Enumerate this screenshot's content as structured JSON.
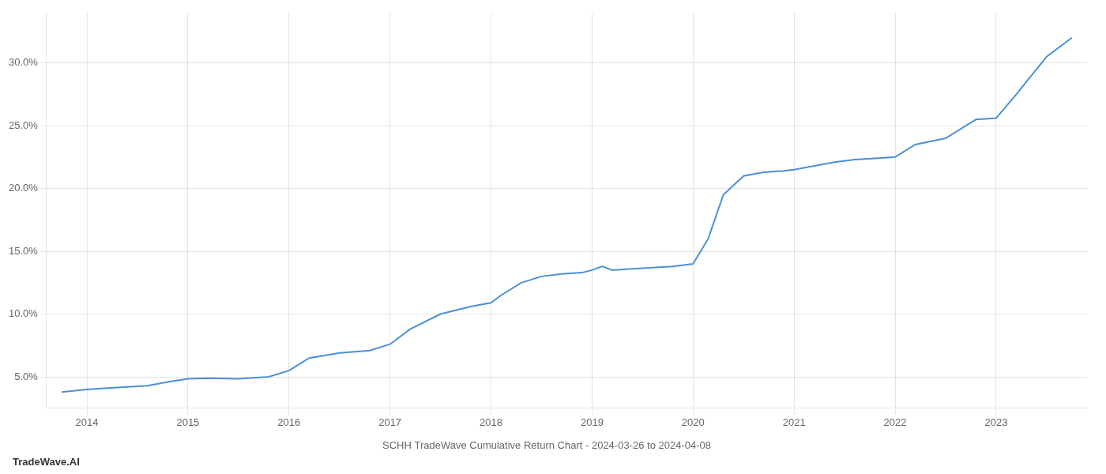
{
  "chart_data": {
    "type": "line",
    "title": "SCHH TradeWave Cumulative Return Chart - 2024-03-26 to 2024-04-08",
    "annotations": [
      "TradeWave.AI"
    ],
    "color": "#4a90d9",
    "x": [
      2013.75,
      2014.0,
      2014.2,
      2014.4,
      2014.6,
      2014.8,
      2015.0,
      2015.2,
      2015.5,
      2015.8,
      2016.0,
      2016.2,
      2016.5,
      2016.8,
      2017.0,
      2017.2,
      2017.5,
      2017.8,
      2018.0,
      2018.1,
      2018.3,
      2018.5,
      2018.7,
      2018.9,
      2019.0,
      2019.1,
      2019.2,
      2019.4,
      2019.6,
      2019.8,
      2020.0,
      2020.15,
      2020.3,
      2020.5,
      2020.7,
      2020.9,
      2021.0,
      2021.2,
      2021.4,
      2021.6,
      2021.8,
      2022.0,
      2022.2,
      2022.5,
      2022.8,
      2023.0,
      2023.2,
      2023.5,
      2023.75
    ],
    "values": [
      3.8,
      4.0,
      4.1,
      4.2,
      4.3,
      4.6,
      4.85,
      4.9,
      4.85,
      5.0,
      5.5,
      6.5,
      6.9,
      7.1,
      7.6,
      8.8,
      10.0,
      10.6,
      10.9,
      11.5,
      12.5,
      13.0,
      13.2,
      13.3,
      13.5,
      13.8,
      13.5,
      13.6,
      13.7,
      13.8,
      14.0,
      16.0,
      19.5,
      21.0,
      21.3,
      21.4,
      21.5,
      21.8,
      22.1,
      22.3,
      22.4,
      22.5,
      23.5,
      24.0,
      25.5,
      25.6,
      27.5,
      30.5,
      32.0
    ],
    "xlim": [
      2013.6,
      2023.9
    ],
    "ylim": [
      2.5,
      34.0
    ],
    "xticks": [
      2014,
      2015,
      2016,
      2017,
      2018,
      2019,
      2020,
      2021,
      2022,
      2023
    ],
    "yticks": [
      {
        "value": 5.0,
        "label": "5.0%"
      },
      {
        "value": 10.0,
        "label": "10.0%"
      },
      {
        "value": 15.0,
        "label": "15.0%"
      },
      {
        "value": 20.0,
        "label": "20.0%"
      },
      {
        "value": 25.0,
        "label": "25.0%"
      },
      {
        "value": 30.0,
        "label": "30.0%"
      }
    ],
    "grid": true
  }
}
